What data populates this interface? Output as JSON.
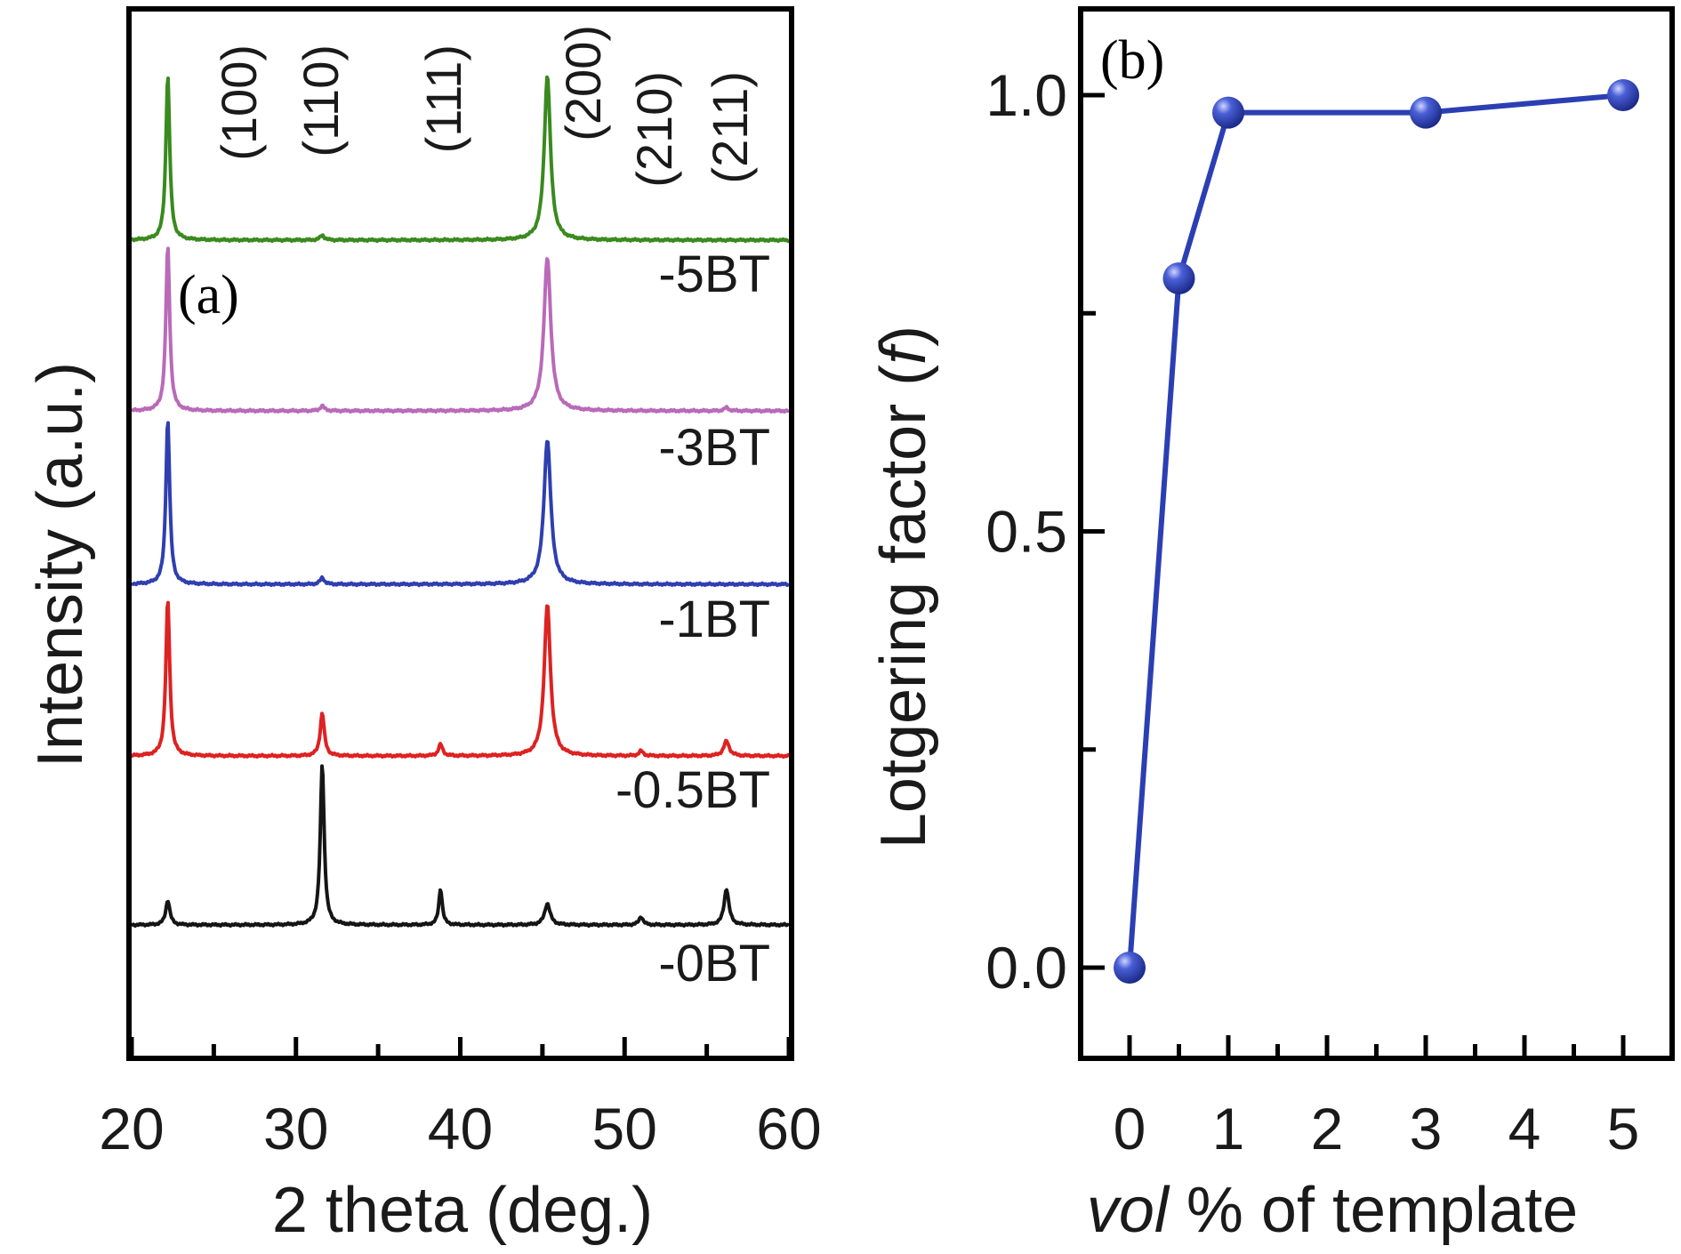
{
  "chart_data": [
    {
      "type": "line",
      "panel_label": "(a)",
      "xlabel": "2 theta (deg.)",
      "ylabel": "Intensity (a.u.)",
      "xlim": [
        20,
        60
      ],
      "xticks": [
        20,
        30,
        40,
        50,
        60
      ],
      "y_ticks_shown": false,
      "hkl_labels": [
        {
          "label": "(100)",
          "x": 23.5
        },
        {
          "label": "(110)",
          "x": 31.5
        },
        {
          "label": "(111)",
          "x": 38.5
        },
        {
          "label": "(200)",
          "x": 46.5
        },
        {
          "label": "(210)",
          "x": 51
        },
        {
          "label": "(211)",
          "x": 56
        }
      ],
      "series": [
        {
          "name": "-5BT",
          "color": "#3a8a1e",
          "label_below": "-5BT",
          "peaks": [
            {
              "x": 22.2,
              "h": 1.0,
              "w": 0.28
            },
            {
              "x": 31.6,
              "h": 0.03,
              "w": 0.3
            },
            {
              "x": 45.3,
              "h": 1.0,
              "w": 0.45
            }
          ]
        },
        {
          "name": "-3BT",
          "color": "#b96ab9",
          "label_below": "-3BT",
          "peaks": [
            {
              "x": 22.2,
              "h": 1.0,
              "w": 0.28
            },
            {
              "x": 31.6,
              "h": 0.03,
              "w": 0.3
            },
            {
              "x": 45.3,
              "h": 0.93,
              "w": 0.5
            },
            {
              "x": 56.2,
              "h": 0.02,
              "w": 0.3
            }
          ]
        },
        {
          "name": "-1BT",
          "color": "#2f3fb0",
          "label_below": "-1BT",
          "peaks": [
            {
              "x": 22.2,
              "h": 1.0,
              "w": 0.28
            },
            {
              "x": 31.6,
              "h": 0.04,
              "w": 0.3
            },
            {
              "x": 45.3,
              "h": 0.88,
              "w": 0.5
            }
          ]
        },
        {
          "name": "-0.5BT",
          "color": "#dd2222",
          "label_below": "-0.5BT",
          "peaks": [
            {
              "x": 22.2,
              "h": 0.95,
              "w": 0.28
            },
            {
              "x": 31.6,
              "h": 0.26,
              "w": 0.3
            },
            {
              "x": 38.8,
              "h": 0.07,
              "w": 0.3
            },
            {
              "x": 45.3,
              "h": 0.92,
              "w": 0.45
            },
            {
              "x": 51,
              "h": 0.03,
              "w": 0.3
            },
            {
              "x": 56.2,
              "h": 0.09,
              "w": 0.4
            }
          ]
        },
        {
          "name": "-0BT",
          "color": "#151515",
          "label_below": "-0BT",
          "peaks": [
            {
              "x": 22.2,
              "h": 0.15,
              "w": 0.3
            },
            {
              "x": 31.6,
              "h": 0.98,
              "w": 0.28
            },
            {
              "x": 38.8,
              "h": 0.22,
              "w": 0.25
            },
            {
              "x": 45.3,
              "h": 0.13,
              "w": 0.4
            },
            {
              "x": 51,
              "h": 0.05,
              "w": 0.3
            },
            {
              "x": 56.2,
              "h": 0.22,
              "w": 0.35
            }
          ]
        }
      ]
    },
    {
      "type": "line",
      "panel_label": "(b)",
      "xlabel_italic": "vol",
      "xlabel_rest": " % of template",
      "ylabel_main": "Lotgering factor (",
      "ylabel_italic": "f",
      "ylabel_close": ")",
      "xlim": [
        -0.5,
        5.5
      ],
      "ylim": [
        -0.1,
        1.1
      ],
      "xticks": [
        0,
        1,
        2,
        3,
        4,
        5
      ],
      "yticks": [
        0.0,
        0.5,
        1.0
      ],
      "ytick_labels": [
        "0.0",
        "0.5",
        "1.0"
      ],
      "series": [
        {
          "color": "#2b3fb3",
          "x": [
            0,
            0.5,
            1,
            3,
            5
          ],
          "y": [
            0.0,
            0.79,
            0.98,
            0.98,
            1.0
          ]
        }
      ]
    }
  ]
}
